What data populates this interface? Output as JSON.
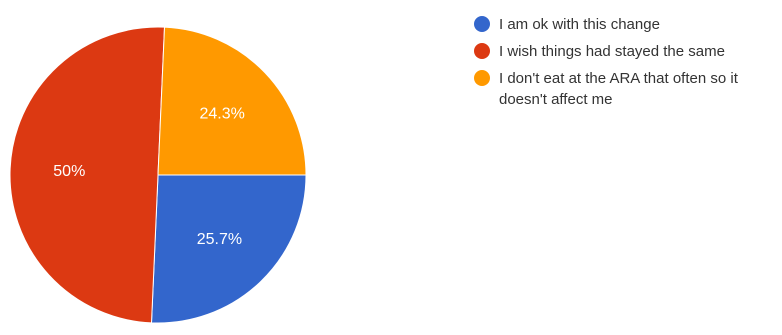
{
  "chart_data": {
    "type": "pie",
    "slices": [
      {
        "label": "I am ok with this change",
        "value": 25.7,
        "display": "25.7%",
        "color": "#3366cc"
      },
      {
        "label": "I wish things had stayed the same",
        "value": 50,
        "display": "50%",
        "color": "#dc3912"
      },
      {
        "label": "I don't eat at the ARA that often so it doesn't affect me",
        "value": 24.3,
        "display": "24.3%",
        "color": "#ff9900"
      }
    ],
    "start_angle_deg": 0,
    "direction": "clockwise",
    "legend_position": "right"
  }
}
